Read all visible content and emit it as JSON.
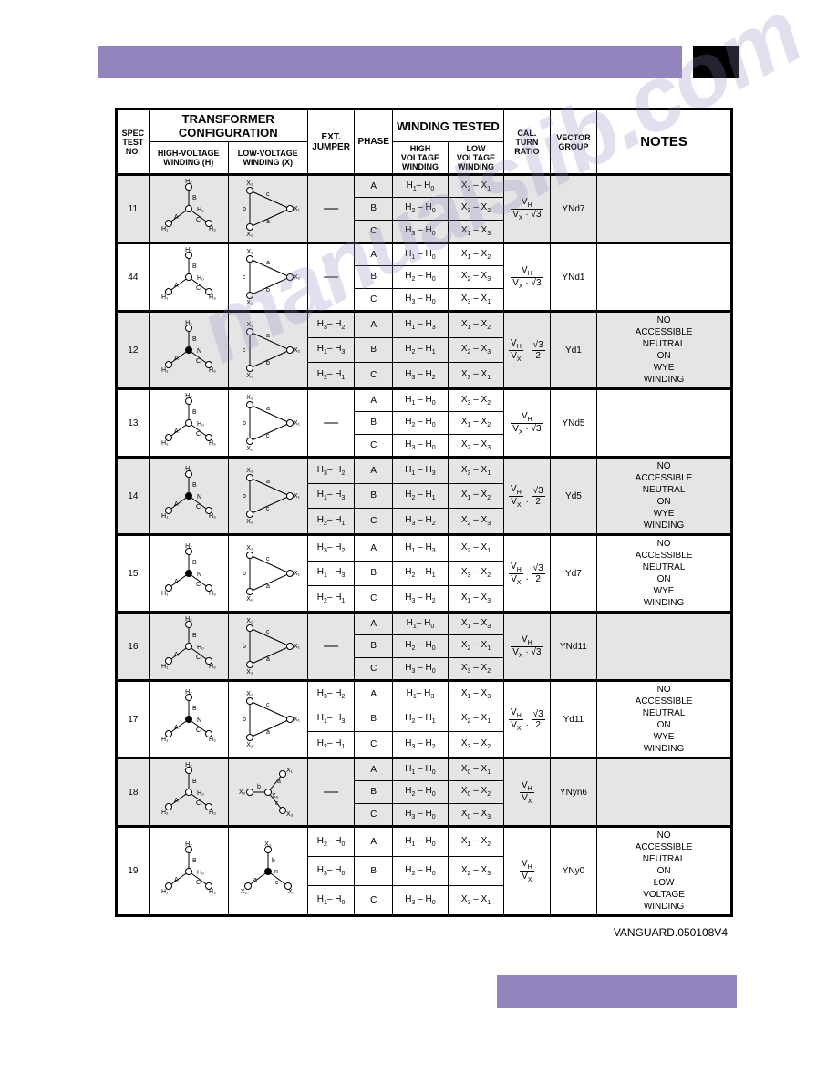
{
  "colors": {
    "purple": "#9384be",
    "gray": "#e5e5e5",
    "black": "#000000",
    "white": "#ffffff"
  },
  "header": {
    "transformer_config": "TRANSFORMER CONFIGURATION",
    "spec_test_no": "SPEC TEST NO.",
    "hv_winding_h": "HIGH-VOLTAGE WINDING (H)",
    "lv_winding_x": "LOW-VOLTAGE WINDING (X)",
    "ext_jumper": "EXT. JUMPER",
    "phase": "PHASE",
    "winding_tested": "WINDING TESTED",
    "hv_winding": "HIGH VOLTAGE WINDING",
    "lv_winding": "LOW VOLTAGE WINDING",
    "cal_turn_ratio": "CAL. TURN RATIO",
    "vector_group": "VECTOR GROUP",
    "notes": "NOTES"
  },
  "ratios": {
    "vh_vx_sqrt3": "V_H / (V_X · √3)",
    "vh_vx_sqrt3_2": "(V_H / V_X) · (√3 / 2)",
    "vh_vx": "V_H / V_X"
  },
  "rows": [
    {
      "spec": "11",
      "gray": true,
      "hdiag": "wye_open",
      "ldiag": "delta_x3x1x2",
      "ext": [
        "—"
      ],
      "phases": [
        "A",
        "B",
        "C"
      ],
      "hv": [
        "H1– H0",
        "H2 – H0",
        "H3 – H0"
      ],
      "lv": [
        "X2 – X1",
        "X3 – X2",
        "X1 – X3"
      ],
      "ratio": "vh_vx_sqrt3",
      "vg": "YNd7",
      "notes": ""
    },
    {
      "spec": "44",
      "gray": false,
      "hdiag": "wye_open",
      "ldiag": "delta_x1x2x3",
      "ext": [
        "—"
      ],
      "phases": [
        "A",
        "B",
        "C"
      ],
      "hv": [
        "H1 – H0",
        "H2 – H0",
        "H3 – H0"
      ],
      "lv": [
        "X1 – X2",
        "X2 – X3",
        "X3 – X1"
      ],
      "ratio": "vh_vx_sqrt3",
      "vg": "YNd1",
      "notes": ""
    },
    {
      "spec": "12",
      "gray": true,
      "hdiag": "wye_closed",
      "ldiag": "delta_x1x2x3",
      "ext": [
        "H3– H2",
        "H1– H3",
        "H2– H1"
      ],
      "phases": [
        "A",
        "B",
        "C"
      ],
      "hv": [
        "H1 – H3",
        "H2 – H1",
        "H3 – H2"
      ],
      "lv": [
        "X1 – X2",
        "X2 – X3",
        "X3 – X1"
      ],
      "ratio": "vh_vx_sqrt3_2",
      "vg": "Yd1",
      "notes": "NO ACCESSIBLE NEUTRAL ON WYE WINDING"
    },
    {
      "spec": "13",
      "gray": false,
      "hdiag": "wye_open",
      "ldiag": "delta_x3x1x2b",
      "ext": [
        "—"
      ],
      "phases": [
        "A",
        "B",
        "C"
      ],
      "hv": [
        "H1 – H0",
        "H2 – H0",
        "H3 – H0"
      ],
      "lv": [
        "X3 – X2",
        "X1 – X2",
        "X2 – X3"
      ],
      "ratio": "vh_vx_sqrt3",
      "vg": "YNd5",
      "notes": ""
    },
    {
      "spec": "14",
      "gray": true,
      "hdiag": "wye_closed",
      "ldiag": "delta_x3x1x2b",
      "ext": [
        "H3– H2",
        "H1– H3",
        "H2– H1"
      ],
      "phases": [
        "A",
        "B",
        "C"
      ],
      "hv": [
        "H1 – H3",
        "H2 – H1",
        "H3 – H2"
      ],
      "lv": [
        "X3 – X1",
        "X1 – X2",
        "X2 – X3"
      ],
      "ratio": "vh_vx_sqrt3_2",
      "vg": "Yd5",
      "notes": "NO ACCESSIBLE NEUTRAL ON WYE WINDING"
    },
    {
      "spec": "15",
      "gray": false,
      "hdiag": "wye_closed",
      "ldiag": "delta_x3x1x2",
      "ext": [
        "H3– H2",
        "H1– H3",
        "H2– H1"
      ],
      "phases": [
        "A",
        "B",
        "C"
      ],
      "hv": [
        "H1 – H3",
        "H2 – H1",
        "H3 – H2"
      ],
      "lv": [
        "X2 – X1",
        "X3 – X2",
        "X1 – X3"
      ],
      "ratio": "vh_vx_sqrt3_2",
      "vg": "Yd7",
      "notes": "NO ACCESSIBLE NEUTRAL ON WYE WINDING"
    },
    {
      "spec": "16",
      "gray": true,
      "hdiag": "wye_open",
      "ldiag": "delta_x2x1x3",
      "ext": [
        "—"
      ],
      "phases": [
        "A",
        "B",
        "C"
      ],
      "hv": [
        "H1– H0",
        "H2 – H0",
        "H3 – H0"
      ],
      "lv": [
        "X1 – X3",
        "X2 – X1",
        "X3 – X2"
      ],
      "ratio": "vh_vx_sqrt3",
      "vg": "YNd11",
      "notes": ""
    },
    {
      "spec": "17",
      "gray": false,
      "hdiag": "wye_closed",
      "ldiag": "delta_x2x1x3",
      "ext": [
        "H3– H2",
        "H1– H3",
        "H2– H1"
      ],
      "phases": [
        "A",
        "B",
        "C"
      ],
      "hv": [
        "H1– H3",
        "H2 – H1",
        "H3 – H2"
      ],
      "lv": [
        "X1 – X3",
        "X2 – X1",
        "X3 – X2"
      ],
      "ratio": "vh_vx_sqrt3_2",
      "vg": "Yd11",
      "notes": "NO ACCESSIBLE NEUTRAL ON WYE WINDING"
    },
    {
      "spec": "18",
      "gray": true,
      "hdiag": "wye_open",
      "ldiag": "wye_x0_inv",
      "ext": [
        "—"
      ],
      "phases": [
        "A",
        "B",
        "C"
      ],
      "hv": [
        "H1 – H0",
        "H2 – H0",
        "H3 – H0"
      ],
      "lv": [
        "X0 – X1",
        "X0 – X2",
        "X0 – X3"
      ],
      "ratio": "vh_vx",
      "vg": "YNyn6",
      "notes": ""
    },
    {
      "spec": "19",
      "gray": false,
      "hdiag": "wye_open",
      "ldiag": "wye_x",
      "ext": [
        "H2– H0",
        "H3– H0",
        "H1– H0"
      ],
      "phases": [
        "A",
        "B",
        "C"
      ],
      "hv": [
        "H1 – H0",
        "H2 – H0",
        "H3 – H0"
      ],
      "lv": [
        "X1 – X2",
        "X2 – X3",
        "X3 – X1"
      ],
      "ratio": "vh_vx",
      "vg": "YNy0",
      "notes": "NO ACCESSIBLE NEUTRAL ON LOW VOLTAGE WINDING"
    }
  ],
  "footer": "VANGUARD.050108V4",
  "watermark": "manualslib.com"
}
